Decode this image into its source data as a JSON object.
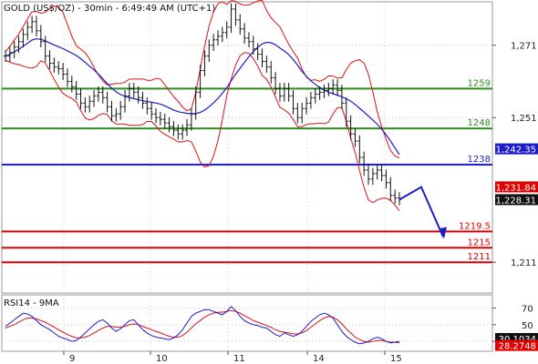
{
  "chart_data": {
    "type": "line",
    "title": "GOLD (US$/OZ) - 30min - 6:49:49 AM (UTC+1)",
    "price_axis": {
      "ticks": [
        1271,
        1251,
        1211
      ],
      "tick_labels": [
        "1,271",
        "1,251",
        "1,211"
      ],
      "range": [
        1202.5,
        1283
      ]
    },
    "x_axis": {
      "tick_labels": [
        "9",
        "10",
        "11",
        "14",
        "15"
      ]
    },
    "horizontal_levels": [
      {
        "label": "1259",
        "value": 1259,
        "color": "#2e8b1e"
      },
      {
        "label": "1248",
        "value": 1248,
        "color": "#2e8b1e"
      },
      {
        "label": "1238",
        "value": 1238,
        "color": "#1c1cc8"
      },
      {
        "label": "1219.5",
        "value": 1219.5,
        "color": "#e00000"
      },
      {
        "label": "1215",
        "value": 1215,
        "color": "#e00000"
      },
      {
        "label": "1211",
        "value": 1211,
        "color": "#e00000"
      }
    ],
    "price_badges": [
      {
        "label": "1,242.35",
        "value": 1242.35,
        "bg": "#1c1cc8",
        "fg": "#ffffff"
      },
      {
        "label": "1,231.84",
        "value": 1231.84,
        "bg": "#e00000",
        "fg": "#ffffff"
      },
      {
        "label": "1,228.31",
        "value": 1228.31,
        "bg": "#111111",
        "fg": "#ffffff"
      }
    ],
    "price_series": [
      1268.0,
      1269.0,
      1270.5,
      1272.0,
      1274.0,
      1276.0,
      1277.5,
      1275.0,
      1272.0,
      1268.0,
      1266.0,
      1265.0,
      1264.5,
      1263.0,
      1261.0,
      1259.5,
      1257.5,
      1255.0,
      1254.0,
      1255.5,
      1257.0,
      1258.0,
      1256.5,
      1254.0,
      1251.5,
      1252.0,
      1254.0,
      1257.0,
      1259.0,
      1258.0,
      1256.5,
      1255.0,
      1253.5,
      1252.0,
      1251.0,
      1250.5,
      1249.5,
      1248.5,
      1247.5,
      1246.5,
      1247.5,
      1249.0,
      1252.0,
      1258.0,
      1264.0,
      1268.0,
      1271.0,
      1272.5,
      1273.5,
      1274.5,
      1276.0,
      1281.0,
      1278.0,
      1275.5,
      1273.0,
      1272.0,
      1270.0,
      1268.5,
      1266.5,
      1265.0,
      1262.0,
      1259.0,
      1257.0,
      1259.0,
      1257.0,
      1253.5,
      1251.0,
      1253.5,
      1255.0,
      1256.5,
      1257.5,
      1258.0,
      1258.5,
      1259.0,
      1260.0,
      1258.5,
      1255.0,
      1250.0,
      1246.5,
      1244.5,
      1240.0,
      1236.5,
      1234.0,
      1235.5,
      1236.5,
      1235.0,
      1233.0,
      1229.5,
      1228.8,
      1228.3
    ],
    "projection": [
      1228.3,
      1231.8,
      1218.0
    ],
    "indicator": {
      "name": "RSI14 - 9MA",
      "ticks": [
        70,
        50,
        30
      ],
      "range": [
        18,
        86
      ],
      "badges": [
        {
          "label": "30.1034",
          "value": 30.1034,
          "bg": "#111111",
          "fg": "#ffffff"
        },
        {
          "label": "28.2748",
          "value": 28.2748,
          "bg": "#e00000",
          "fg": "#ffffff"
        }
      ],
      "rsi": [
        48,
        52,
        56,
        60,
        64,
        63,
        60,
        55,
        50,
        47,
        44,
        40,
        36,
        34,
        32,
        30,
        31,
        35,
        40,
        45,
        50,
        54,
        56,
        52,
        46,
        42,
        45,
        50,
        55,
        56,
        50,
        44,
        40,
        37,
        35,
        34,
        33,
        32,
        34,
        38,
        44,
        52,
        60,
        64,
        66,
        68,
        68,
        66,
        64,
        62,
        66,
        72,
        67,
        60,
        55,
        52,
        50,
        49,
        47,
        46,
        42,
        38,
        36,
        40,
        38,
        36,
        38,
        42,
        48,
        54,
        58,
        62,
        64,
        62,
        58,
        50,
        42,
        36,
        32,
        29,
        27,
        28,
        30,
        33,
        35,
        33,
        30,
        28,
        29,
        30
      ],
      "ma": [
        46,
        48,
        50,
        53,
        56,
        58,
        58,
        57,
        55,
        53,
        50,
        47,
        44,
        41,
        38,
        36,
        34,
        34,
        35,
        37,
        40,
        43,
        46,
        48,
        48,
        47,
        47,
        48,
        50,
        51,
        50,
        48,
        46,
        44,
        42,
        40,
        38,
        36,
        35,
        35,
        37,
        41,
        46,
        51,
        55,
        59,
        62,
        64,
        65,
        65,
        66,
        67,
        66,
        64,
        61,
        58,
        55,
        53,
        51,
        49,
        47,
        44,
        42,
        41,
        40,
        39,
        39,
        40,
        43,
        47,
        51,
        55,
        58,
        60,
        59,
        56,
        51,
        45,
        40,
        35,
        32,
        30,
        29,
        30,
        31,
        31,
        30,
        29,
        29,
        28
      ]
    }
  }
}
